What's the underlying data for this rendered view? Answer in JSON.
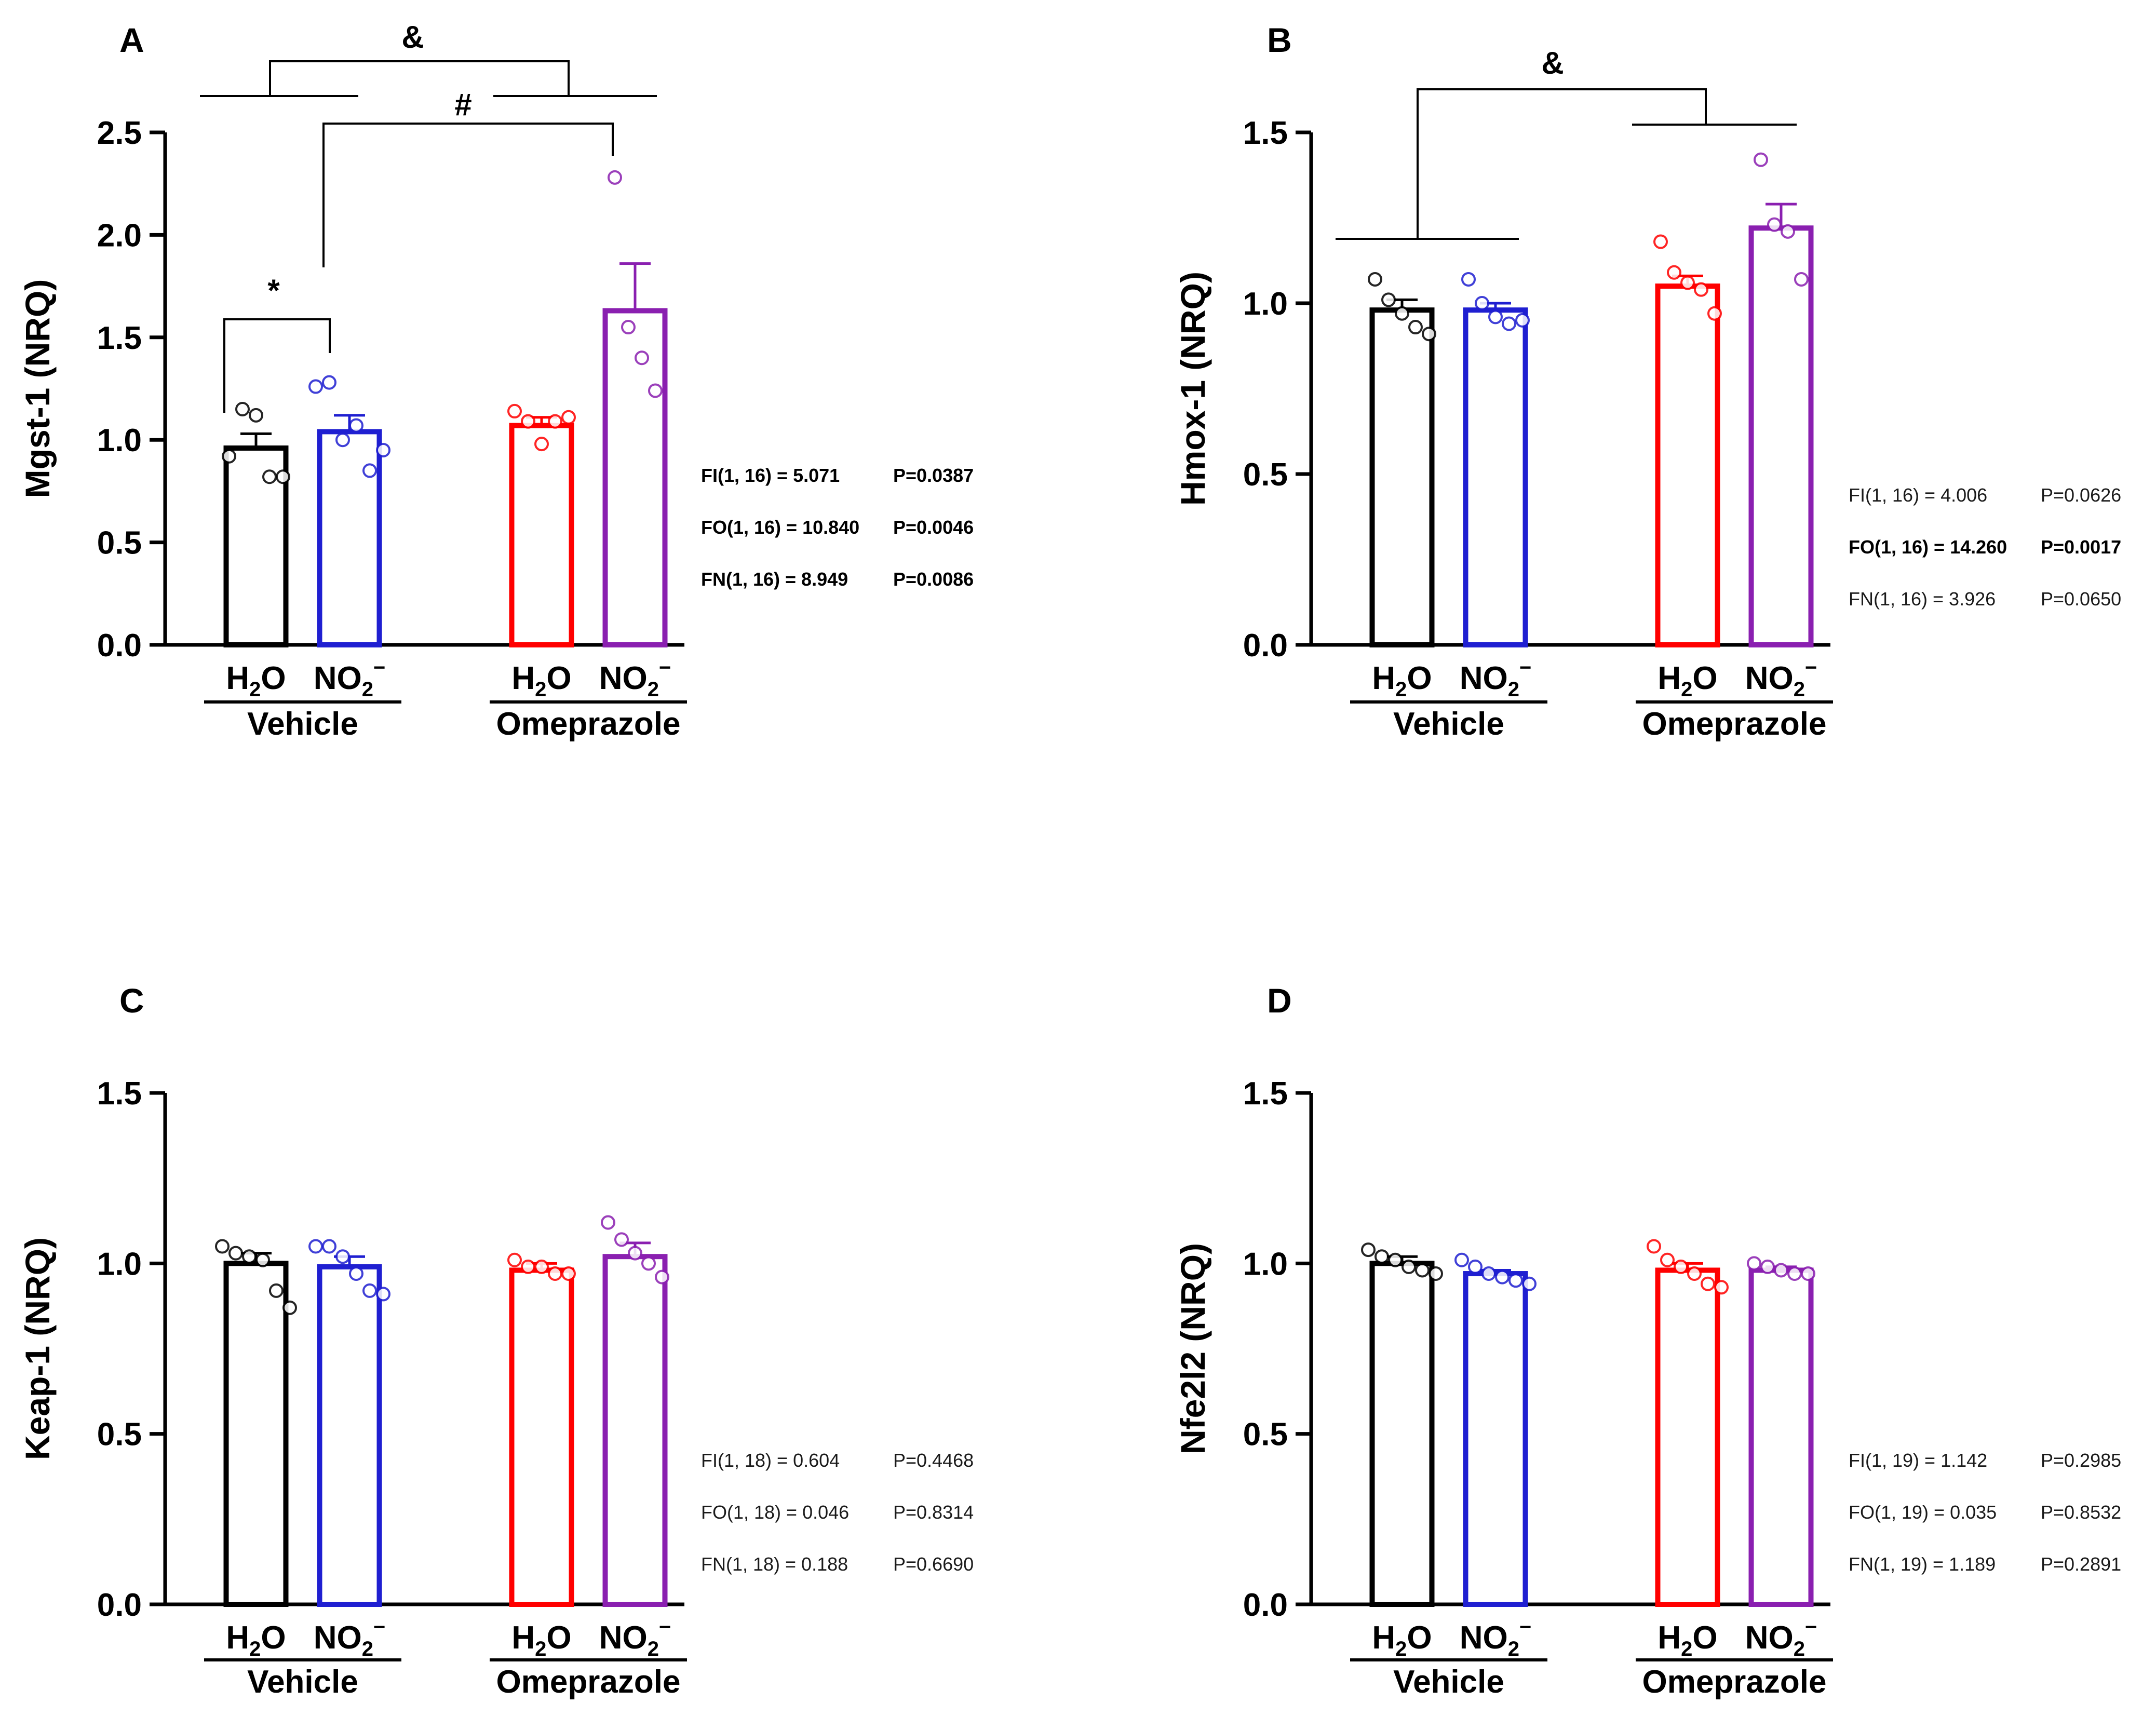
{
  "chart_data": [
    {
      "type": "bar",
      "panel": "A",
      "ylabel": "Mgst-1 (NRQ)",
      "ylim": [
        0,
        2.5
      ],
      "yticks": [
        "0.0",
        "0.5",
        "1.0",
        "1.5",
        "2.0",
        "2.5"
      ],
      "groups": [
        "Vehicle",
        "Omeprazole"
      ],
      "categories": [
        "H2O",
        "NO2−",
        "H2O",
        "NO2−"
      ],
      "series": [
        {
          "name": "Vehicle H2O",
          "color": "#000000",
          "value": 0.96,
          "sem": 0.07,
          "points": [
            0.92,
            1.15,
            1.12,
            0.82,
            0.82
          ]
        },
        {
          "name": "Vehicle NO2−",
          "color": "#1f1fd1",
          "value": 1.04,
          "sem": 0.08,
          "points": [
            1.26,
            1.28,
            1.0,
            1.07,
            0.85,
            0.95
          ]
        },
        {
          "name": "Omeprazole H2O",
          "color": "#ff0000",
          "value": 1.07,
          "sem": 0.04,
          "points": [
            1.14,
            1.09,
            0.98,
            1.09,
            1.11
          ]
        },
        {
          "name": "Omeprazole NO2−",
          "color": "#8a1fb0",
          "value": 1.63,
          "sem": 0.23,
          "points": [
            2.28,
            1.55,
            1.4,
            1.24
          ]
        }
      ],
      "brackets": [
        {
          "symbol": "&",
          "between": [
            "Vehicle",
            "Omeprazole"
          ]
        },
        {
          "symbol": "#",
          "between": [
            "Vehicle NO2−",
            "Omeprazole NO2−"
          ]
        },
        {
          "symbol": "*",
          "between": [
            "Vehicle H2O",
            "Vehicle NO2−"
          ]
        }
      ],
      "stats": [
        {
          "label": "FI(1, 16) = 5.071",
          "p": "P=0.0387",
          "bold": true
        },
        {
          "label": "FO(1, 16) = 10.840",
          "p": "P=0.0046",
          "bold": true
        },
        {
          "label": "FN(1, 16) = 8.949",
          "p": "P=0.0086",
          "bold": true
        }
      ]
    },
    {
      "type": "bar",
      "panel": "B",
      "ylabel": "Hmox-1 (NRQ)",
      "ylim": [
        0,
        1.5
      ],
      "yticks": [
        "0.0",
        "0.5",
        "1.0",
        "1.5"
      ],
      "groups": [
        "Vehicle",
        "Omeprazole"
      ],
      "categories": [
        "H2O",
        "NO2−",
        "H2O",
        "NO2−"
      ],
      "series": [
        {
          "name": "Vehicle H2O",
          "color": "#000000",
          "value": 0.98,
          "sem": 0.03,
          "points": [
            1.07,
            1.01,
            0.97,
            0.93,
            0.91
          ]
        },
        {
          "name": "Vehicle NO2−",
          "color": "#1f1fd1",
          "value": 0.98,
          "sem": 0.02,
          "points": [
            1.07,
            1.0,
            0.96,
            0.94,
            0.95
          ]
        },
        {
          "name": "Omeprazole H2O",
          "color": "#ff0000",
          "value": 1.05,
          "sem": 0.03,
          "points": [
            1.18,
            1.09,
            1.06,
            1.04,
            0.97
          ]
        },
        {
          "name": "Omeprazole NO2−",
          "color": "#8a1fb0",
          "value": 1.22,
          "sem": 0.07,
          "points": [
            1.42,
            1.23,
            1.21,
            1.07
          ]
        }
      ],
      "brackets": [
        {
          "symbol": "&",
          "between": [
            "Vehicle",
            "Omeprazole"
          ]
        }
      ],
      "stats": [
        {
          "label": "FI(1, 16) = 4.006",
          "p": "P=0.0626",
          "bold": false
        },
        {
          "label": "FO(1, 16) = 14.260",
          "p": "P=0.0017",
          "bold": true
        },
        {
          "label": "FN(1, 16) = 3.926",
          "p": "P=0.0650",
          "bold": false
        }
      ]
    },
    {
      "type": "bar",
      "panel": "C",
      "ylabel": "Keap-1 (NRQ)",
      "ylim": [
        0,
        1.5
      ],
      "yticks": [
        "0.0",
        "0.5",
        "1.0",
        "1.5"
      ],
      "groups": [
        "Vehicle",
        "Omeprazole"
      ],
      "categories": [
        "H2O",
        "NO2−",
        "H2O",
        "NO2−"
      ],
      "series": [
        {
          "name": "Vehicle H2O",
          "color": "#000000",
          "value": 1.0,
          "sem": 0.03,
          "points": [
            1.05,
            1.03,
            1.02,
            1.01,
            0.92,
            0.87
          ]
        },
        {
          "name": "Vehicle NO2−",
          "color": "#1f1fd1",
          "value": 0.99,
          "sem": 0.03,
          "points": [
            1.05,
            1.05,
            1.02,
            0.97,
            0.92,
            0.91
          ]
        },
        {
          "name": "Omeprazole H2O",
          "color": "#ff0000",
          "value": 0.98,
          "sem": 0.02,
          "points": [
            1.01,
            0.99,
            0.99,
            0.97,
            0.97
          ]
        },
        {
          "name": "Omeprazole NO2−",
          "color": "#8a1fb0",
          "value": 1.02,
          "sem": 0.04,
          "points": [
            1.12,
            1.07,
            1.03,
            1.0,
            0.96
          ]
        }
      ],
      "brackets": [],
      "stats": [
        {
          "label": "FI(1, 18) = 0.604",
          "p": "P=0.4468",
          "bold": false
        },
        {
          "label": "FO(1, 18) = 0.046",
          "p": "P=0.8314",
          "bold": false
        },
        {
          "label": "FN(1, 18) = 0.188",
          "p": "P=0.6690",
          "bold": false
        }
      ]
    },
    {
      "type": "bar",
      "panel": "D",
      "ylabel": "Nfe2l2 (NRQ)",
      "ylim": [
        0,
        1.5
      ],
      "yticks": [
        "0.0",
        "0.5",
        "1.0",
        "1.5"
      ],
      "groups": [
        "Vehicle",
        "Omeprazole"
      ],
      "categories": [
        "H2O",
        "NO2−",
        "H2O",
        "NO2−"
      ],
      "series": [
        {
          "name": "Vehicle H2O",
          "color": "#000000",
          "value": 1.0,
          "sem": 0.02,
          "points": [
            1.04,
            1.02,
            1.01,
            0.99,
            0.98,
            0.97
          ]
        },
        {
          "name": "Vehicle NO2−",
          "color": "#1f1fd1",
          "value": 0.97,
          "sem": 0.01,
          "points": [
            1.01,
            0.99,
            0.97,
            0.96,
            0.95,
            0.94
          ]
        },
        {
          "name": "Omeprazole H2O",
          "color": "#ff0000",
          "value": 0.98,
          "sem": 0.02,
          "points": [
            1.05,
            1.01,
            0.99,
            0.97,
            0.94,
            0.93
          ]
        },
        {
          "name": "Omeprazole NO2−",
          "color": "#8a1fb0",
          "value": 0.98,
          "sem": 0.01,
          "points": [
            1.0,
            0.99,
            0.98,
            0.97,
            0.97
          ]
        }
      ],
      "brackets": [],
      "stats": [
        {
          "label": "FI(1, 19) = 1.142",
          "p": "P=0.2985",
          "bold": false
        },
        {
          "label": "FO(1, 19) = 0.035",
          "p": "P=0.8532",
          "bold": false
        },
        {
          "label": "FN(1, 19) = 1.189",
          "p": "P=0.2891",
          "bold": false
        }
      ]
    }
  ],
  "labels": {
    "h2o_main": "H",
    "h2o_sub": "2",
    "h2o_tail": "O",
    "no2_main": "NO",
    "no2_sub": "2",
    "no2_sup": "−"
  }
}
